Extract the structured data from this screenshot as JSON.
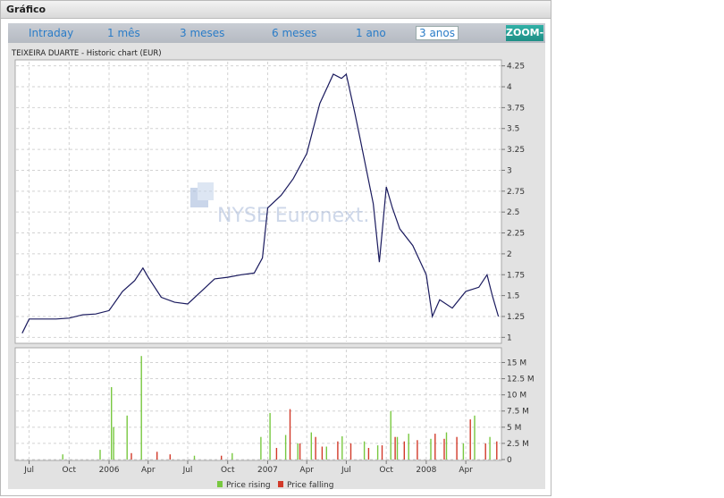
{
  "widget": {
    "title": "Gráfico"
  },
  "tabs": [
    {
      "label": "Intraday",
      "active": false
    },
    {
      "label": "1 mês",
      "active": false
    },
    {
      "label": "3 meses",
      "active": false
    },
    {
      "label": "6 meses",
      "active": false
    },
    {
      "label": "1 ano",
      "active": false
    },
    {
      "label": "3 anos",
      "active": true
    }
  ],
  "zoom_label": "ZOOM-",
  "chart_header": "TEIXEIRA DUARTE - Historic chart  (EUR)",
  "watermark": "NYSE Euronext.",
  "legend": {
    "rising": "Price rising",
    "falling": "Price falling"
  },
  "colors": {
    "line": "#1a1a5e",
    "rising": "#78c840",
    "falling": "#d23a2a",
    "accent": "#2aa198"
  },
  "chart_data": [
    {
      "type": "line",
      "title": "TEIXEIRA DUARTE - Historic chart  (EUR)",
      "x_tick_labels": [
        "Jul",
        "Oct",
        "2006",
        "Apr",
        "Jul",
        "Oct",
        "2007",
        "Apr",
        "Jul",
        "Oct",
        "2008",
        "Apr"
      ],
      "y_ticks": [
        "1",
        "1.25",
        "1.5",
        "1.75",
        "2",
        "2.25",
        "2.5",
        "2.75",
        "3",
        "3.25",
        "3.5",
        "3.75",
        "4",
        "4.25"
      ],
      "ylim": [
        0.95,
        4.3
      ],
      "grid": true,
      "series": [
        {
          "x": [
            "2005-06-15",
            "2005-07-01",
            "2005-08-01",
            "2005-09-01",
            "2005-10-01",
            "2005-11-01",
            "2005-12-01",
            "2006-01-01",
            "2006-02-01",
            "2006-03-01",
            "2006-03-20",
            "2006-04-01",
            "2006-05-01",
            "2006-06-01",
            "2006-07-01",
            "2006-08-01",
            "2006-09-01",
            "2006-10-01",
            "2006-11-01",
            "2006-12-01",
            "2006-12-20",
            "2007-01-01",
            "2007-02-01",
            "2007-03-01",
            "2007-04-01",
            "2007-05-01",
            "2007-06-01",
            "2007-06-20",
            "2007-07-01",
            "2007-07-20",
            "2007-08-01",
            "2007-09-01",
            "2007-09-15",
            "2007-10-01",
            "2007-10-15",
            "2007-11-01",
            "2007-12-01",
            "2008-01-01",
            "2008-01-15",
            "2008-02-01",
            "2008-03-01",
            "2008-04-01",
            "2008-05-01",
            "2008-05-20",
            "2008-06-01",
            "2008-06-15"
          ],
          "values": [
            1.05,
            1.22,
            1.22,
            1.22,
            1.23,
            1.27,
            1.28,
            1.32,
            1.55,
            1.68,
            1.83,
            1.72,
            1.48,
            1.42,
            1.4,
            1.55,
            1.7,
            1.72,
            1.75,
            1.77,
            1.95,
            2.55,
            2.7,
            2.9,
            3.2,
            3.8,
            4.15,
            4.1,
            4.15,
            3.7,
            3.4,
            2.6,
            1.9,
            2.8,
            2.55,
            2.3,
            2.1,
            1.75,
            1.25,
            1.45,
            1.35,
            1.55,
            1.6,
            1.75,
            1.5,
            1.25
          ]
        }
      ]
    },
    {
      "type": "bar",
      "title": "",
      "x_tick_labels": [
        "Jul",
        "Oct",
        "2006",
        "Apr",
        "Jul",
        "Oct",
        "2007",
        "Apr",
        "Jul",
        "Oct",
        "2008",
        "Apr"
      ],
      "y_ticks": [
        "0",
        "2.5 M",
        "5 M",
        "7.5 M",
        "10 M",
        "12.5 M",
        "15 M"
      ],
      "ylim": [
        0,
        17
      ],
      "series": [
        {
          "name": "Price rising",
          "x": [
            "2005-09-15",
            "2005-12-10",
            "2006-01-05",
            "2006-01-10",
            "2006-02-10",
            "2006-03-15",
            "2006-07-15",
            "2006-10-10",
            "2006-12-15",
            "2007-01-05",
            "2007-02-10",
            "2007-03-10",
            "2007-04-10",
            "2007-05-15",
            "2007-06-20",
            "2007-08-10",
            "2007-09-10",
            "2007-10-10",
            "2007-10-25",
            "2007-11-20",
            "2008-01-10",
            "2008-02-15",
            "2008-03-25",
            "2008-04-20",
            "2008-05-25"
          ],
          "values": [
            0.8,
            1.5,
            11.2,
            5.0,
            6.8,
            16.0,
            0.6,
            1.0,
            3.5,
            7.2,
            3.8,
            2.5,
            4.2,
            2.0,
            3.6,
            2.8,
            2.2,
            7.5,
            3.5,
            4.0,
            3.2,
            4.2,
            2.5,
            6.8,
            3.5
          ]
        },
        {
          "name": "Price falling",
          "x": [
            "2006-02-20",
            "2006-04-20",
            "2006-05-20",
            "2006-09-15",
            "2007-01-20",
            "2007-02-20",
            "2007-03-15",
            "2007-04-20",
            "2007-05-05",
            "2007-06-10",
            "2007-07-10",
            "2007-08-20",
            "2007-09-20",
            "2007-10-20",
            "2007-11-10",
            "2007-12-10",
            "2008-01-20",
            "2008-02-10",
            "2008-03-10",
            "2008-04-10",
            "2008-05-15",
            "2008-06-10"
          ],
          "values": [
            1.0,
            1.2,
            0.8,
            0.6,
            1.8,
            7.8,
            2.5,
            3.5,
            2.0,
            2.8,
            2.5,
            1.8,
            2.2,
            3.5,
            2.8,
            3.0,
            4.0,
            3.2,
            3.5,
            6.2,
            2.5,
            2.8
          ]
        }
      ]
    }
  ]
}
